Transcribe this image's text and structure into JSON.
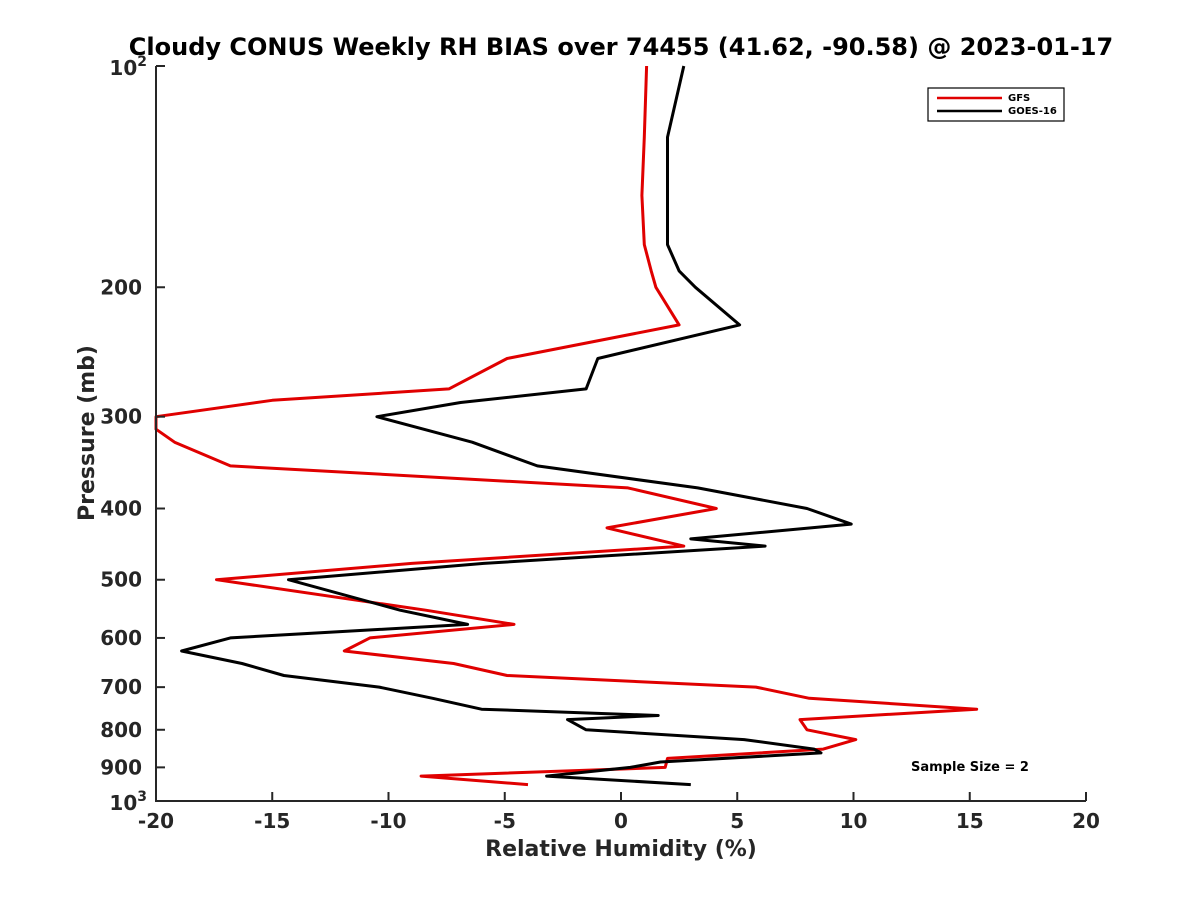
{
  "chart_data": {
    "type": "line",
    "title": "Cloudy CONUS Weekly RH BIAS over 74455 (41.62, -90.58) @ 2023-01-17",
    "xlabel": "Relative Humidity (%)",
    "ylabel": "Pressure (mb)",
    "xlim": [
      -20,
      20
    ],
    "ylim": [
      100,
      1000
    ],
    "y_scale": "log",
    "y_reversed": true,
    "grid": false,
    "legend_position": "top-right",
    "x_ticks": [
      {
        "value": -20,
        "label": "-20"
      },
      {
        "value": -15,
        "label": "-15"
      },
      {
        "value": -10,
        "label": "-10"
      },
      {
        "value": -5,
        "label": "-5"
      },
      {
        "value": 0,
        "label": "0"
      },
      {
        "value": 5,
        "label": "5"
      },
      {
        "value": 10,
        "label": "10"
      },
      {
        "value": 15,
        "label": "15"
      },
      {
        "value": 20,
        "label": "20"
      }
    ],
    "y_ticks": [
      {
        "value": 100,
        "base": "10",
        "exp": "2"
      },
      {
        "value": 200,
        "base": "200",
        "exp": ""
      },
      {
        "value": 300,
        "base": "300",
        "exp": ""
      },
      {
        "value": 400,
        "base": "400",
        "exp": ""
      },
      {
        "value": 500,
        "base": "500",
        "exp": ""
      },
      {
        "value": 600,
        "base": "600",
        "exp": ""
      },
      {
        "value": 700,
        "base": "700",
        "exp": ""
      },
      {
        "value": 800,
        "base": "800",
        "exp": ""
      },
      {
        "value": 900,
        "base": "900",
        "exp": ""
      },
      {
        "value": 1000,
        "base": "10",
        "exp": "3"
      }
    ],
    "series": [
      {
        "name": "GFS",
        "color": "#e00000",
        "points": [
          [
            1.1,
            100
          ],
          [
            1.0,
            125
          ],
          [
            0.9,
            150
          ],
          [
            1.0,
            175
          ],
          [
            1.3,
            190
          ],
          [
            1.5,
            200
          ],
          [
            2.5,
            225
          ],
          [
            -4.9,
            250
          ],
          [
            -7.4,
            275
          ],
          [
            -15.0,
            285
          ],
          [
            -20.0,
            300
          ],
          [
            -20.0,
            312
          ],
          [
            -19.2,
            325
          ],
          [
            -16.8,
            350
          ],
          [
            0.3,
            375
          ],
          [
            4.1,
            400
          ],
          [
            -0.6,
            425
          ],
          [
            2.7,
            450
          ],
          [
            -9.0,
            475
          ],
          [
            -17.4,
            500
          ],
          [
            -8.4,
            550
          ],
          [
            -4.6,
            575
          ],
          [
            -10.8,
            600
          ],
          [
            -11.9,
            625
          ],
          [
            -7.2,
            650
          ],
          [
            -4.9,
            675
          ],
          [
            5.8,
            700
          ],
          [
            8.1,
            725
          ],
          [
            15.3,
            750
          ],
          [
            7.7,
            775
          ],
          [
            8.0,
            800
          ],
          [
            10.1,
            825
          ],
          [
            8.7,
            850
          ],
          [
            2.0,
            875
          ],
          [
            1.9,
            900
          ],
          [
            -8.6,
            925
          ],
          [
            -4.0,
            950
          ]
        ]
      },
      {
        "name": "GOES-16",
        "color": "#000000",
        "points": [
          [
            2.7,
            100
          ],
          [
            2.0,
            125
          ],
          [
            2.0,
            150
          ],
          [
            2.0,
            175
          ],
          [
            2.5,
            190
          ],
          [
            3.2,
            200
          ],
          [
            5.1,
            225
          ],
          [
            -1.0,
            250
          ],
          [
            -1.5,
            275
          ],
          [
            -6.9,
            287
          ],
          [
            -10.5,
            300
          ],
          [
            -6.4,
            325
          ],
          [
            -3.6,
            350
          ],
          [
            3.3,
            375
          ],
          [
            8.0,
            400
          ],
          [
            9.9,
            420
          ],
          [
            3.0,
            440
          ],
          [
            6.2,
            450
          ],
          [
            -5.9,
            475
          ],
          [
            -14.3,
            500
          ],
          [
            -9.5,
            550
          ],
          [
            -6.6,
            575
          ],
          [
            -16.8,
            600
          ],
          [
            -18.9,
            625
          ],
          [
            -16.3,
            650
          ],
          [
            -14.5,
            675
          ],
          [
            -10.4,
            700
          ],
          [
            -8.1,
            725
          ],
          [
            -6.0,
            750
          ],
          [
            1.6,
            765
          ],
          [
            -2.3,
            775
          ],
          [
            -1.5,
            800
          ],
          [
            5.3,
            825
          ],
          [
            8.3,
            850
          ],
          [
            8.6,
            860
          ],
          [
            1.7,
            885
          ],
          [
            0.4,
            900
          ],
          [
            -3.2,
            925
          ],
          [
            3.0,
            950
          ]
        ]
      }
    ],
    "annotation": "Sample Size = 2"
  }
}
